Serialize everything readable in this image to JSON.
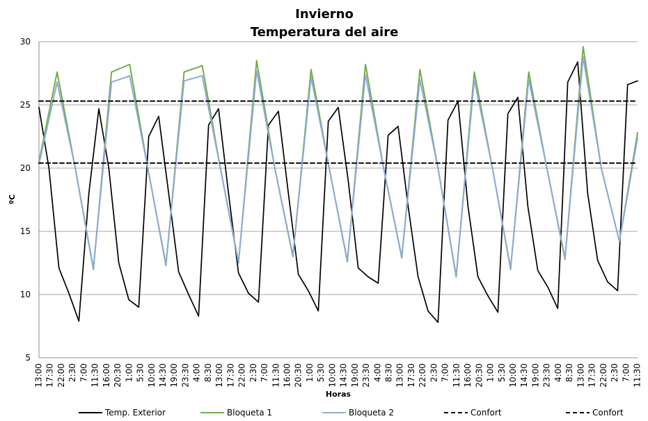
{
  "chart_data": {
    "type": "line",
    "title": "Invierno",
    "subtitle": "Temperatura del aire",
    "xlabel": "Horas",
    "ylabel": "ºC",
    "ylim": [
      5,
      30
    ],
    "yticks": [
      5,
      10,
      15,
      20,
      25,
      30
    ],
    "x_tick_labels": [
      "13:00",
      "17:30",
      "22:00",
      "2:30",
      "7:00",
      "11:30",
      "16:00",
      "20:30",
      "1:00",
      "5:30",
      "10:00",
      "14:30",
      "19:00",
      "23:30",
      "4:00",
      "8:30",
      "13:00",
      "17:30",
      "22:00",
      "2:30",
      "7:00",
      "11:30",
      "16:00",
      "20:30",
      "1:00",
      "5:30",
      "10:00",
      "14:30",
      "19:00",
      "23:30",
      "4:00",
      "8:30",
      "13:00",
      "17:30",
      "22:00",
      "2:30",
      "7:00",
      "11:30",
      "16:00",
      "20:30",
      "1:00",
      "5:30",
      "10:00",
      "14:30",
      "19:00",
      "23:30",
      "4:00",
      "8:30",
      "13:00",
      "17:30",
      "22:00",
      "2:30",
      "7:00",
      "11:30"
    ],
    "grid": true,
    "legend_position": "bottom",
    "series": [
      {
        "name": "Temp. Exterior",
        "color": "#000000",
        "dash": "solid",
        "values": [
          24.8,
          20,
          12.1,
          10.1,
          7.9,
          18,
          24.7,
          20,
          12.5,
          9.6,
          9,
          22.5,
          24.1,
          18,
          11.8,
          10,
          8.3,
          23.4,
          24.7,
          18,
          11.7,
          10.1,
          9.4,
          23.4,
          24.5,
          18,
          11.6,
          10.3,
          8.7,
          23.7,
          24.8,
          19,
          12.1,
          11.4,
          10.9,
          22.6,
          23.3,
          17,
          11.4,
          8.7,
          7.8,
          23.8,
          25.3,
          17,
          11.4,
          9.9,
          8.6,
          24.3,
          25.6,
          17,
          11.9,
          10.6,
          8.9,
          26.8,
          28.4,
          18,
          12.7,
          11,
          10.3,
          26.6,
          26.9
        ]
      },
      {
        "name": "Bloqueta 1",
        "color": "#70AD47",
        "dash": "solid",
        "values": [
          20.5,
          27.6,
          20,
          12,
          27.6,
          28.2,
          20,
          12.3,
          27.6,
          28.1,
          20,
          12.5,
          28.5,
          20,
          13,
          27.8,
          20,
          12.6,
          28.2,
          20,
          12.9,
          27.8,
          20,
          11.4,
          27.6,
          20,
          12,
          27.6,
          20,
          12.8,
          29.6,
          20,
          14.2,
          22.8
        ]
      },
      {
        "name": "Bloqueta 2",
        "color": "#8EA9DB",
        "dash": "solid",
        "values": [
          20.3,
          26.8,
          20,
          12.1,
          26.8,
          27.3,
          20,
          12.4,
          26.9,
          27.3,
          20,
          12.6,
          27.7,
          20,
          13.1,
          27.2,
          20,
          12.7,
          27.4,
          20,
          13,
          27,
          20,
          11.5,
          27,
          20,
          12.1,
          27,
          20,
          12.9,
          28.8,
          20,
          14.2,
          22.4
        ]
      },
      {
        "name": "Confort",
        "color": "#000000",
        "dash": "dashed",
        "values": [
          25.3,
          25.3
        ]
      },
      {
        "name": "Confort",
        "color": "#000000",
        "dash": "dashed",
        "values": [
          20.4,
          20.4
        ]
      }
    ]
  }
}
